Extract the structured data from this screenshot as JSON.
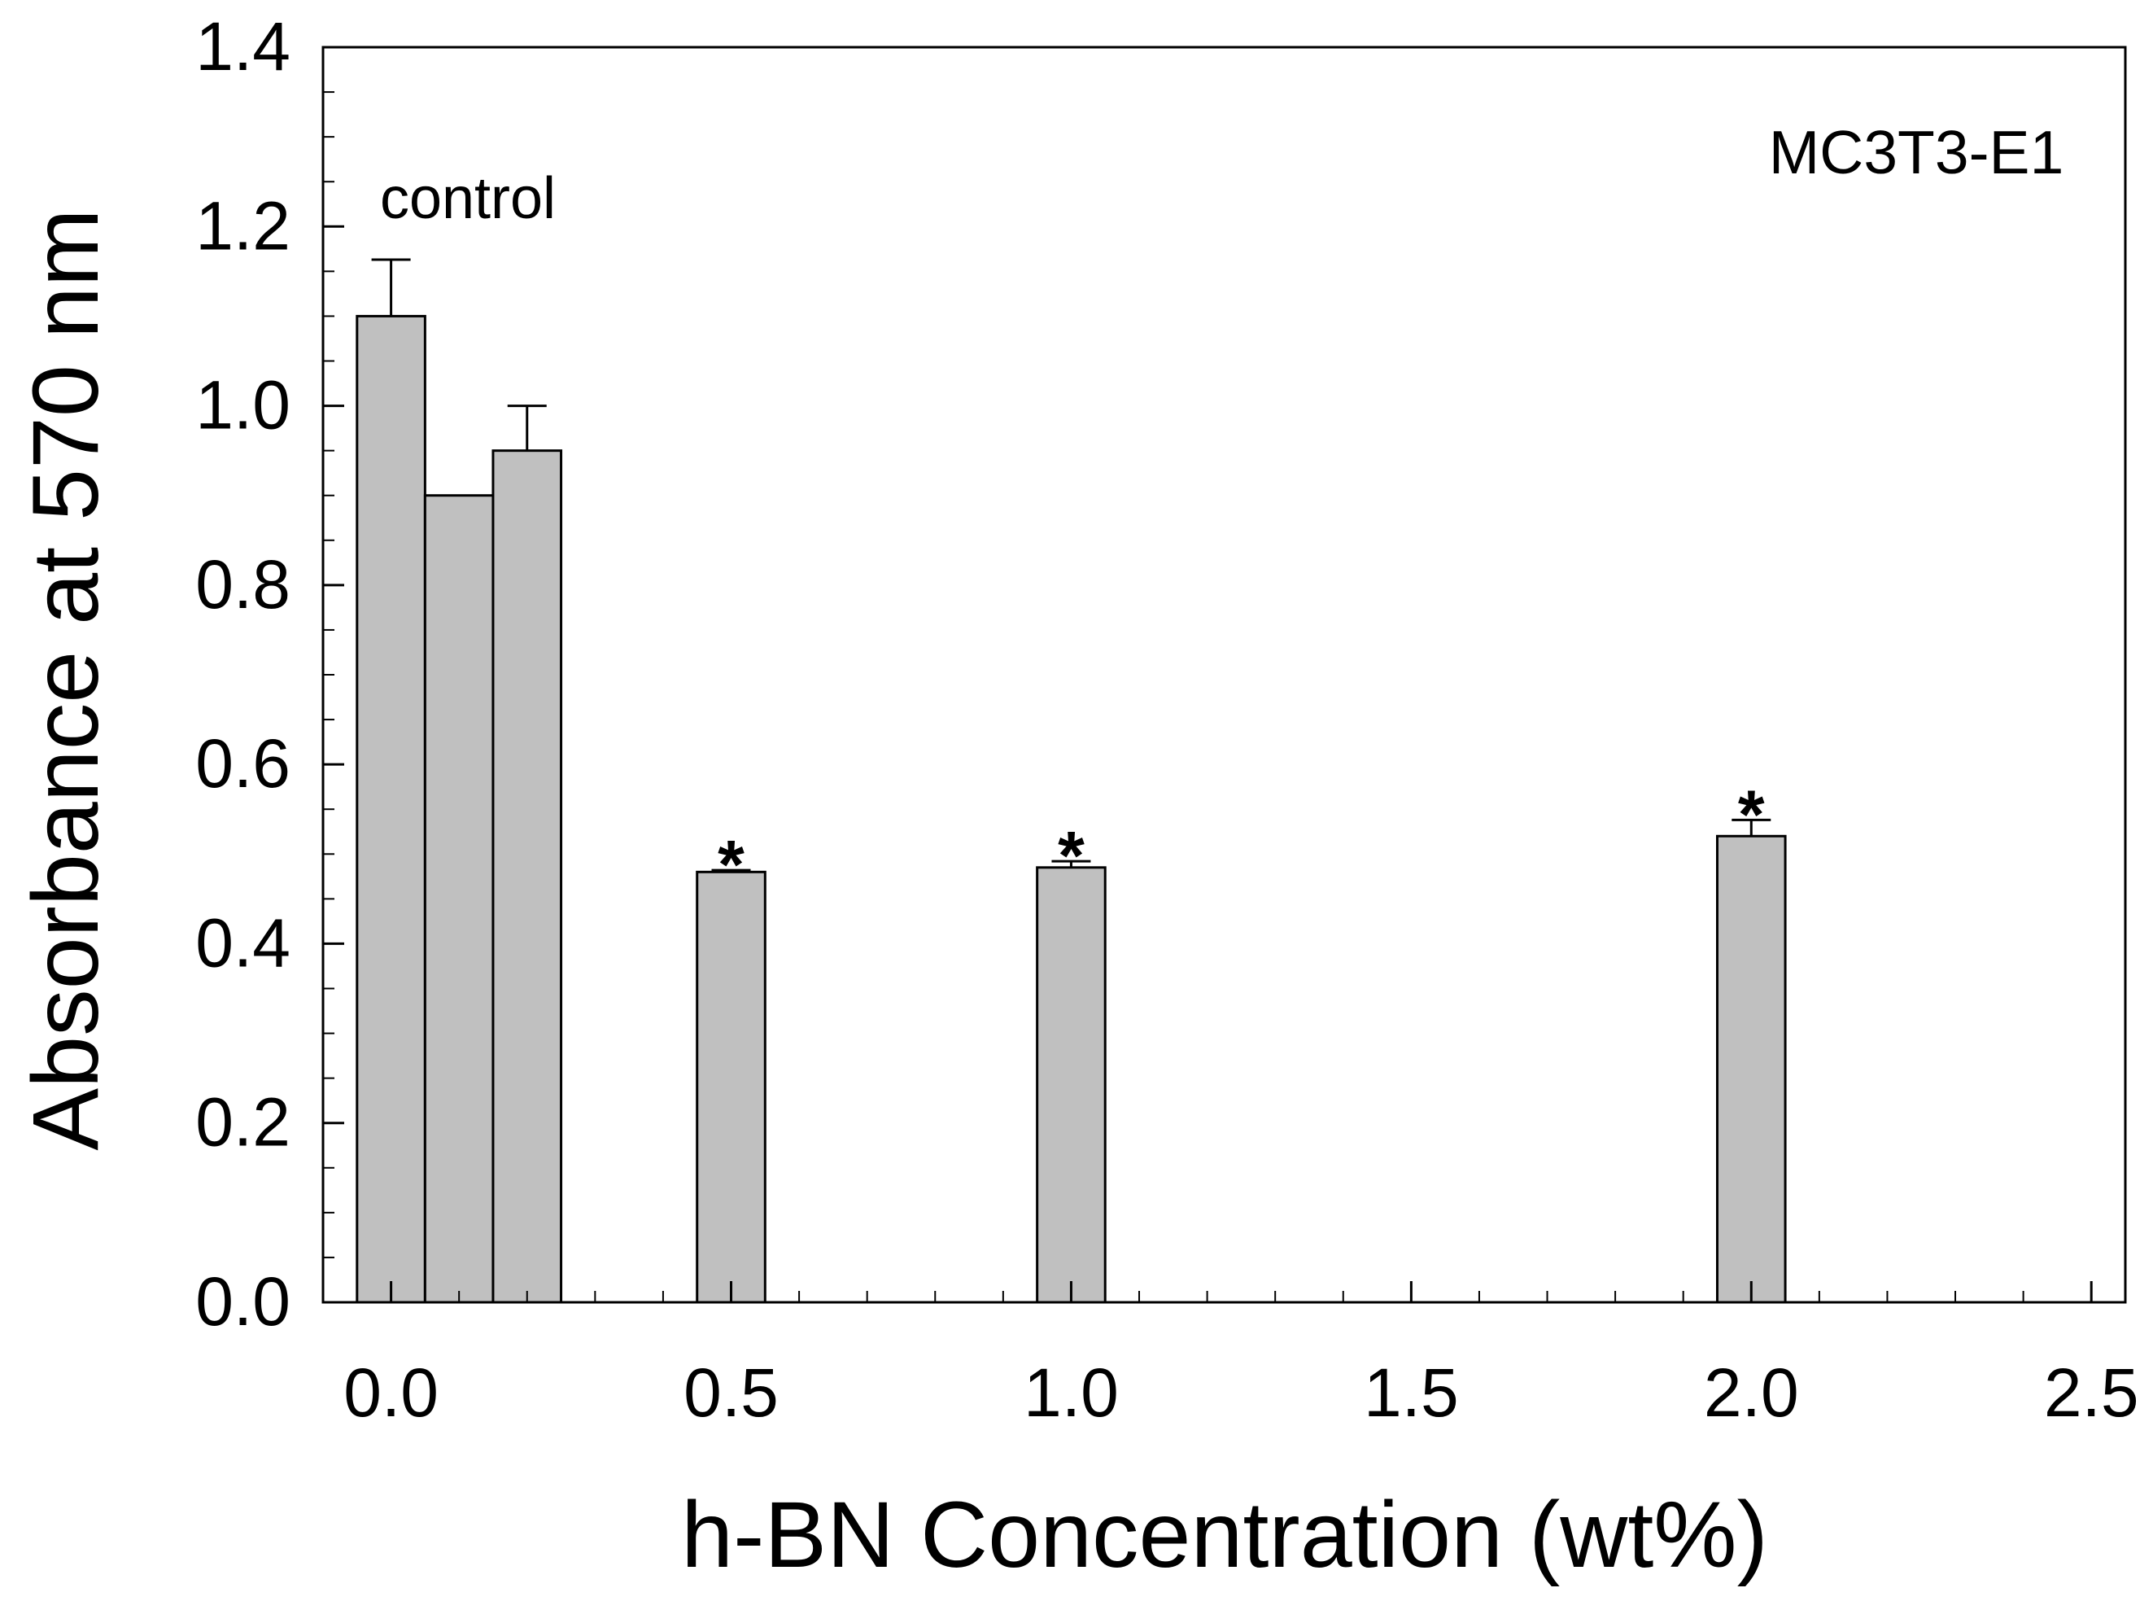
{
  "chart_data": {
    "type": "bar",
    "title": "",
    "annotation": "MC3T3-E1",
    "control_label": "control",
    "xlabel": "h-BN Concentration (wt%)",
    "ylabel": "Absorbance at 570 nm",
    "xlim": [
      -0.1,
      2.55
    ],
    "ylim": [
      0.0,
      1.4
    ],
    "x_ticks": [
      0.0,
      0.5,
      1.0,
      1.5,
      2.0,
      2.5
    ],
    "x_tick_labels": [
      "0.0",
      "0.5",
      "1.0",
      "1.5",
      "2.0",
      "2.5"
    ],
    "y_ticks": [
      0.0,
      0.2,
      0.4,
      0.6,
      0.8,
      1.0,
      1.2,
      1.4
    ],
    "y_tick_labels": [
      "0.0",
      "0.2",
      "0.4",
      "0.6",
      "0.8",
      "1.0",
      "1.2",
      "1.4"
    ],
    "significance_marker": "*",
    "bar_color": "#c0c0c0",
    "bars": [
      {
        "x": 0.0,
        "value": 1.1,
        "error": 0.063,
        "significant": false
      },
      {
        "x": 0.1,
        "value": 0.9,
        "error": 0.0,
        "significant": false
      },
      {
        "x": 0.2,
        "value": 0.95,
        "error": 0.05,
        "significant": false
      },
      {
        "x": 0.5,
        "value": 0.48,
        "error": 0.002,
        "significant": true
      },
      {
        "x": 1.0,
        "value": 0.485,
        "error": 0.007,
        "significant": true
      },
      {
        "x": 2.0,
        "value": 0.52,
        "error": 0.018,
        "significant": true
      }
    ],
    "bar_width": 0.1,
    "grid": false,
    "legend": "none"
  }
}
